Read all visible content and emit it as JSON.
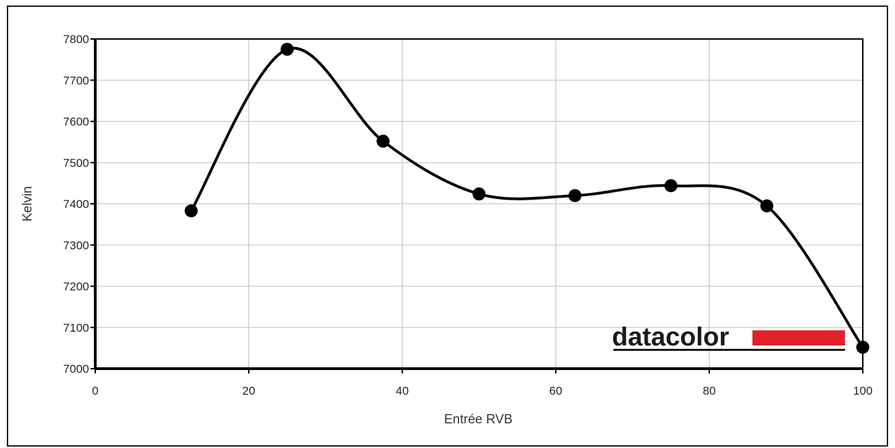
{
  "chart_data": {
    "type": "line",
    "title": "",
    "xlabel": "Entrée RVB",
    "ylabel": "Kelvin",
    "xlim": [
      0,
      100
    ],
    "ylim": [
      7000,
      7800
    ],
    "x_ticks": [
      0,
      20,
      40,
      60,
      80,
      100
    ],
    "y_ticks": [
      7000,
      7100,
      7200,
      7300,
      7400,
      7500,
      7600,
      7700,
      7800
    ],
    "grid": true,
    "smooth": true,
    "markers": true,
    "line_color": "#000000",
    "series": [
      {
        "x": [
          12.5,
          25,
          37.5,
          50,
          62.5,
          75,
          87.5,
          100
        ],
        "y": [
          7383,
          7775,
          7552,
          7424,
          7420,
          7444,
          7395,
          7052
        ]
      }
    ]
  },
  "logo": {
    "text": "datacolor",
    "bar_color": "#e0212b",
    "text_color": "#1a1a1a"
  }
}
